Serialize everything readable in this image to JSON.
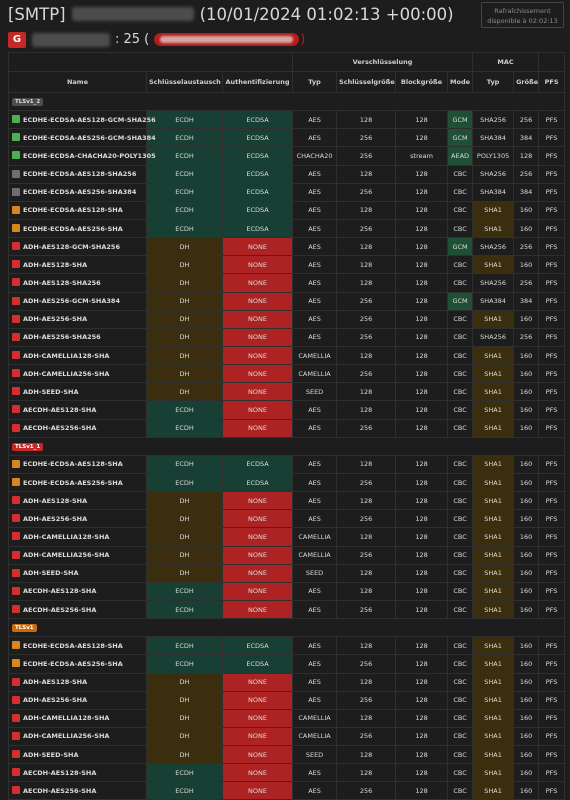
{
  "header": {
    "protocol_tag": "[SMTP]",
    "timestamp": "(10/01/2024 01:02:13 +00:00)",
    "refresh_line1": "Rafraîchissement",
    "refresh_line2": "disponible à 02:02:13",
    "grade": "G",
    "port": ": 25 ("
  },
  "table": {
    "groups": {
      "encryption": "Verschlüsselung",
      "mac": "MAC"
    },
    "columns": [
      "Name",
      "Schlüsselaustausch",
      "Authentifizierung",
      "Typ",
      "Schlüsselgröße",
      "Blockgröße",
      "Mode",
      "Typ",
      "Größe",
      "PFS"
    ]
  },
  "sections": [
    {
      "label": "TLSv1_2",
      "badge": "gray",
      "rows": [
        {
          "name": "ECDHE-ECDSA-AES128-GCM-SHA256",
          "color": "green",
          "kx": "ECDH",
          "auth": "ECDSA",
          "enc": "AES",
          "keysize": "128",
          "block": "128",
          "mode": "GCM",
          "mac": "SHA256",
          "macsize": "256",
          "pfs": "PFS"
        },
        {
          "name": "ECDHE-ECDSA-AES256-GCM-SHA384",
          "color": "green",
          "kx": "ECDH",
          "auth": "ECDSA",
          "enc": "AES",
          "keysize": "256",
          "block": "128",
          "mode": "GCM",
          "mac": "SHA384",
          "macsize": "384",
          "pfs": "PFS"
        },
        {
          "name": "ECDHE-ECDSA-CHACHA20-POLY1305",
          "color": "green",
          "kx": "ECDH",
          "auth": "ECDSA",
          "enc": "CHACHA20",
          "keysize": "256",
          "block": "stream",
          "mode": "AEAD",
          "mac": "POLY1305",
          "macsize": "128",
          "pfs": "PFS"
        },
        {
          "name": "ECDHE-ECDSA-AES128-SHA256",
          "color": "gray",
          "kx": "ECDH",
          "auth": "ECDSA",
          "enc": "AES",
          "keysize": "128",
          "block": "128",
          "mode": "CBC",
          "mac": "SHA256",
          "macsize": "256",
          "pfs": "PFS"
        },
        {
          "name": "ECDHE-ECDSA-AES256-SHA384",
          "color": "gray",
          "kx": "ECDH",
          "auth": "ECDSA",
          "enc": "AES",
          "keysize": "256",
          "block": "128",
          "mode": "CBC",
          "mac": "SHA384",
          "macsize": "384",
          "pfs": "PFS"
        },
        {
          "name": "ECDHE-ECDSA-AES128-SHA",
          "color": "orange",
          "kx": "ECDH",
          "auth": "ECDSA",
          "enc": "AES",
          "keysize": "128",
          "block": "128",
          "mode": "CBC",
          "mac": "SHA1",
          "macsize": "160",
          "pfs": "PFS"
        },
        {
          "name": "ECDHE-ECDSA-AES256-SHA",
          "color": "orange",
          "kx": "ECDH",
          "auth": "ECDSA",
          "enc": "AES",
          "keysize": "256",
          "block": "128",
          "mode": "CBC",
          "mac": "SHA1",
          "macsize": "160",
          "pfs": "PFS"
        },
        {
          "name": "ADH-AES128-GCM-SHA256",
          "color": "red",
          "kx": "DH",
          "auth": "NONE",
          "enc": "AES",
          "keysize": "128",
          "block": "128",
          "mode": "GCM",
          "mac": "SHA256",
          "macsize": "256",
          "pfs": "PFS"
        },
        {
          "name": "ADH-AES128-SHA",
          "color": "red",
          "kx": "DH",
          "auth": "NONE",
          "enc": "AES",
          "keysize": "128",
          "block": "128",
          "mode": "CBC",
          "mac": "SHA1",
          "macsize": "160",
          "pfs": "PFS"
        },
        {
          "name": "ADH-AES128-SHA256",
          "color": "red",
          "kx": "DH",
          "auth": "NONE",
          "enc": "AES",
          "keysize": "128",
          "block": "128",
          "mode": "CBC",
          "mac": "SHA256",
          "macsize": "256",
          "pfs": "PFS"
        },
        {
          "name": "ADH-AES256-GCM-SHA384",
          "color": "red",
          "kx": "DH",
          "auth": "NONE",
          "enc": "AES",
          "keysize": "256",
          "block": "128",
          "mode": "GCM",
          "mac": "SHA384",
          "macsize": "384",
          "pfs": "PFS"
        },
        {
          "name": "ADH-AES256-SHA",
          "color": "red",
          "kx": "DH",
          "auth": "NONE",
          "enc": "AES",
          "keysize": "256",
          "block": "128",
          "mode": "CBC",
          "mac": "SHA1",
          "macsize": "160",
          "pfs": "PFS"
        },
        {
          "name": "ADH-AES256-SHA256",
          "color": "red",
          "kx": "DH",
          "auth": "NONE",
          "enc": "AES",
          "keysize": "256",
          "block": "128",
          "mode": "CBC",
          "mac": "SHA256",
          "macsize": "256",
          "pfs": "PFS"
        },
        {
          "name": "ADH-CAMELLIA128-SHA",
          "color": "red",
          "kx": "DH",
          "auth": "NONE",
          "enc": "CAMELLIA",
          "keysize": "128",
          "block": "128",
          "mode": "CBC",
          "mac": "SHA1",
          "macsize": "160",
          "pfs": "PFS"
        },
        {
          "name": "ADH-CAMELLIA256-SHA",
          "color": "red",
          "kx": "DH",
          "auth": "NONE",
          "enc": "CAMELLIA",
          "keysize": "256",
          "block": "128",
          "mode": "CBC",
          "mac": "SHA1",
          "macsize": "160",
          "pfs": "PFS"
        },
        {
          "name": "ADH-SEED-SHA",
          "color": "red",
          "kx": "DH",
          "auth": "NONE",
          "enc": "SEED",
          "keysize": "128",
          "block": "128",
          "mode": "CBC",
          "mac": "SHA1",
          "macsize": "160",
          "pfs": "PFS"
        },
        {
          "name": "AECDH-AES128-SHA",
          "color": "red",
          "kx": "ECDH",
          "auth": "NONE",
          "enc": "AES",
          "keysize": "128",
          "block": "128",
          "mode": "CBC",
          "mac": "SHA1",
          "macsize": "160",
          "pfs": "PFS"
        },
        {
          "name": "AECDH-AES256-SHA",
          "color": "red",
          "kx": "ECDH",
          "auth": "NONE",
          "enc": "AES",
          "keysize": "256",
          "block": "128",
          "mode": "CBC",
          "mac": "SHA1",
          "macsize": "160",
          "pfs": "PFS"
        }
      ]
    },
    {
      "label": "TLSv1_1",
      "badge": "red",
      "rows": [
        {
          "name": "ECDHE-ECDSA-AES128-SHA",
          "color": "orange",
          "kx": "ECDH",
          "auth": "ECDSA",
          "enc": "AES",
          "keysize": "128",
          "block": "128",
          "mode": "CBC",
          "mac": "SHA1",
          "macsize": "160",
          "pfs": "PFS"
        },
        {
          "name": "ECDHE-ECDSA-AES256-SHA",
          "color": "orange",
          "kx": "ECDH",
          "auth": "ECDSA",
          "enc": "AES",
          "keysize": "256",
          "block": "128",
          "mode": "CBC",
          "mac": "SHA1",
          "macsize": "160",
          "pfs": "PFS"
        },
        {
          "name": "ADH-AES128-SHA",
          "color": "red",
          "kx": "DH",
          "auth": "NONE",
          "enc": "AES",
          "keysize": "128",
          "block": "128",
          "mode": "CBC",
          "mac": "SHA1",
          "macsize": "160",
          "pfs": "PFS"
        },
        {
          "name": "ADH-AES256-SHA",
          "color": "red",
          "kx": "DH",
          "auth": "NONE",
          "enc": "AES",
          "keysize": "256",
          "block": "128",
          "mode": "CBC",
          "mac": "SHA1",
          "macsize": "160",
          "pfs": "PFS"
        },
        {
          "name": "ADH-CAMELLIA128-SHA",
          "color": "red",
          "kx": "DH",
          "auth": "NONE",
          "enc": "CAMELLIA",
          "keysize": "128",
          "block": "128",
          "mode": "CBC",
          "mac": "SHA1",
          "macsize": "160",
          "pfs": "PFS"
        },
        {
          "name": "ADH-CAMELLIA256-SHA",
          "color": "red",
          "kx": "DH",
          "auth": "NONE",
          "enc": "CAMELLIA",
          "keysize": "256",
          "block": "128",
          "mode": "CBC",
          "mac": "SHA1",
          "macsize": "160",
          "pfs": "PFS"
        },
        {
          "name": "ADH-SEED-SHA",
          "color": "red",
          "kx": "DH",
          "auth": "NONE",
          "enc": "SEED",
          "keysize": "128",
          "block": "128",
          "mode": "CBC",
          "mac": "SHA1",
          "macsize": "160",
          "pfs": "PFS"
        },
        {
          "name": "AECDH-AES128-SHA",
          "color": "red",
          "kx": "ECDH",
          "auth": "NONE",
          "enc": "AES",
          "keysize": "128",
          "block": "128",
          "mode": "CBC",
          "mac": "SHA1",
          "macsize": "160",
          "pfs": "PFS"
        },
        {
          "name": "AECDH-AES256-SHA",
          "color": "red",
          "kx": "ECDH",
          "auth": "NONE",
          "enc": "AES",
          "keysize": "256",
          "block": "128",
          "mode": "CBC",
          "mac": "SHA1",
          "macsize": "160",
          "pfs": "PFS"
        }
      ]
    },
    {
      "label": "TLSv1",
      "badge": "orange",
      "rows": [
        {
          "name": "ECDHE-ECDSA-AES128-SHA",
          "color": "orange",
          "kx": "ECDH",
          "auth": "ECDSA",
          "enc": "AES",
          "keysize": "128",
          "block": "128",
          "mode": "CBC",
          "mac": "SHA1",
          "macsize": "160",
          "pfs": "PFS"
        },
        {
          "name": "ECDHE-ECDSA-AES256-SHA",
          "color": "orange",
          "kx": "ECDH",
          "auth": "ECDSA",
          "enc": "AES",
          "keysize": "256",
          "block": "128",
          "mode": "CBC",
          "mac": "SHA1",
          "macsize": "160",
          "pfs": "PFS"
        },
        {
          "name": "ADH-AES128-SHA",
          "color": "red",
          "kx": "DH",
          "auth": "NONE",
          "enc": "AES",
          "keysize": "128",
          "block": "128",
          "mode": "CBC",
          "mac": "SHA1",
          "macsize": "160",
          "pfs": "PFS"
        },
        {
          "name": "ADH-AES256-SHA",
          "color": "red",
          "kx": "DH",
          "auth": "NONE",
          "enc": "AES",
          "keysize": "256",
          "block": "128",
          "mode": "CBC",
          "mac": "SHA1",
          "macsize": "160",
          "pfs": "PFS"
        },
        {
          "name": "ADH-CAMELLIA128-SHA",
          "color": "red",
          "kx": "DH",
          "auth": "NONE",
          "enc": "CAMELLIA",
          "keysize": "128",
          "block": "128",
          "mode": "CBC",
          "mac": "SHA1",
          "macsize": "160",
          "pfs": "PFS"
        },
        {
          "name": "ADH-CAMELLIA256-SHA",
          "color": "red",
          "kx": "DH",
          "auth": "NONE",
          "enc": "CAMELLIA",
          "keysize": "256",
          "block": "128",
          "mode": "CBC",
          "mac": "SHA1",
          "macsize": "160",
          "pfs": "PFS"
        },
        {
          "name": "ADH-SEED-SHA",
          "color": "red",
          "kx": "DH",
          "auth": "NONE",
          "enc": "SEED",
          "keysize": "128",
          "block": "128",
          "mode": "CBC",
          "mac": "SHA1",
          "macsize": "160",
          "pfs": "PFS"
        },
        {
          "name": "AECDH-AES128-SHA",
          "color": "red",
          "kx": "ECDH",
          "auth": "NONE",
          "enc": "AES",
          "keysize": "128",
          "block": "128",
          "mode": "CBC",
          "mac": "SHA1",
          "macsize": "160",
          "pfs": "PFS"
        },
        {
          "name": "AECDH-AES256-SHA",
          "color": "red",
          "kx": "ECDH",
          "auth": "NONE",
          "enc": "AES",
          "keysize": "256",
          "block": "128",
          "mode": "CBC",
          "mac": "SHA1",
          "macsize": "160",
          "pfs": "PFS"
        }
      ]
    }
  ]
}
